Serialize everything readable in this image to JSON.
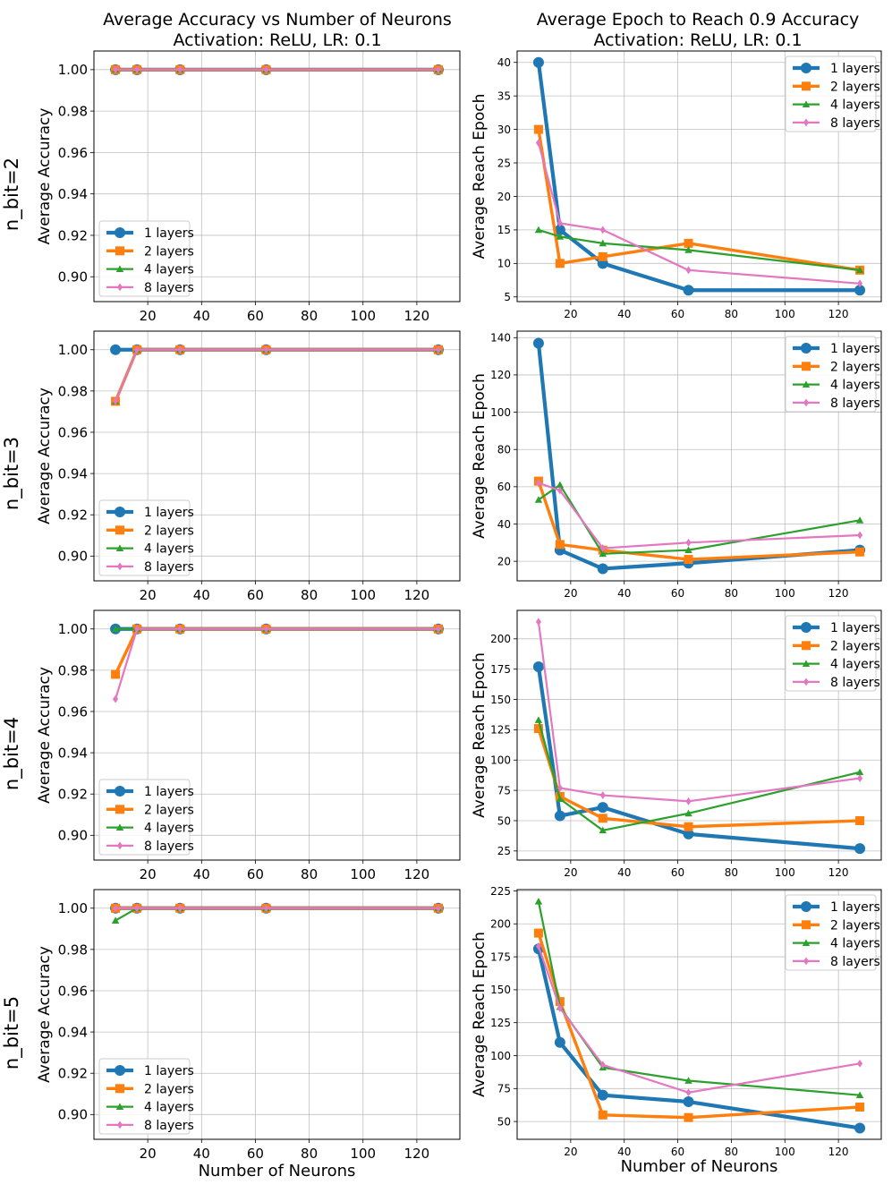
{
  "figure": {
    "col_titles": [
      {
        "line1": "Average Accuracy vs Number of Neurons",
        "line2": "Activation: ReLU, LR: 0.1"
      },
      {
        "line1": "Average Epoch to Reach 0.9 Accuracy",
        "line2": "Activation: ReLU, LR: 0.1"
      }
    ],
    "row_labels": [
      "n_bit=2",
      "n_bit=3",
      "n_bit=4",
      "n_bit=5"
    ],
    "shared_xlabel": "Number of Neurons"
  },
  "series_style": [
    {
      "name": "1 layers",
      "color": "#1f77b4",
      "marker": "circle"
    },
    {
      "name": "2 layers",
      "color": "#ff7f0e",
      "marker": "square"
    },
    {
      "name": "4 layers",
      "color": "#2ca02c",
      "marker": "triangle"
    },
    {
      "name": "8 layers",
      "color": "#e377c2",
      "marker": "diamond"
    }
  ],
  "chart_data": [
    {
      "id": "acc-nbit2",
      "type": "line",
      "title": "",
      "xlabel": "",
      "ylabel": "Average Accuracy",
      "x": [
        8,
        16,
        32,
        64,
        128
      ],
      "xlim": [
        0,
        136
      ],
      "ylim": [
        0.888,
        1.009
      ],
      "xticks": [
        20,
        40,
        60,
        80,
        100,
        120
      ],
      "yticks": [
        0.9,
        0.92,
        0.94,
        0.96,
        0.98,
        1.0
      ],
      "ytick_labels": [
        "0.90",
        "0.92",
        "0.94",
        "0.96",
        "0.98",
        "1.00"
      ],
      "legend": "lower-left",
      "series": [
        {
          "name": "1 layers",
          "values": [
            1.0,
            1.0,
            1.0,
            1.0,
            1.0
          ]
        },
        {
          "name": "2 layers",
          "values": [
            1.0,
            1.0,
            1.0,
            1.0,
            1.0
          ]
        },
        {
          "name": "4 layers",
          "values": [
            1.0,
            1.0,
            1.0,
            1.0,
            1.0
          ]
        },
        {
          "name": "8 layers",
          "values": [
            1.0,
            1.0,
            1.0,
            1.0,
            1.0
          ]
        }
      ]
    },
    {
      "id": "epoch-nbit2",
      "type": "line",
      "title": "",
      "xlabel": "",
      "ylabel": "Average Reach Epoch",
      "x": [
        8,
        16,
        32,
        64,
        128
      ],
      "xlim": [
        0,
        136
      ],
      "ylim": [
        4.3,
        41.7
      ],
      "xticks": [
        20,
        40,
        60,
        80,
        100,
        120
      ],
      "yticks": [
        5,
        10,
        15,
        20,
        25,
        30,
        35,
        40
      ],
      "ytick_labels": [
        "5",
        "10",
        "15",
        "20",
        "25",
        "30",
        "35",
        "40"
      ],
      "legend": "top-right",
      "series": [
        {
          "name": "1 layers",
          "values": [
            40,
            15,
            10,
            6,
            6
          ]
        },
        {
          "name": "2 layers",
          "values": [
            30,
            10,
            11,
            13,
            9
          ]
        },
        {
          "name": "4 layers",
          "values": [
            15,
            14,
            13,
            12,
            9
          ]
        },
        {
          "name": "8 layers",
          "values": [
            28,
            16,
            15,
            9,
            7
          ]
        }
      ]
    },
    {
      "id": "acc-nbit3",
      "type": "line",
      "title": "",
      "xlabel": "",
      "ylabel": "Average Accuracy",
      "x": [
        8,
        16,
        32,
        64,
        128
      ],
      "xlim": [
        0,
        136
      ],
      "ylim": [
        0.888,
        1.009
      ],
      "xticks": [
        20,
        40,
        60,
        80,
        100,
        120
      ],
      "yticks": [
        0.9,
        0.92,
        0.94,
        0.96,
        0.98,
        1.0
      ],
      "ytick_labels": [
        "0.90",
        "0.92",
        "0.94",
        "0.96",
        "0.98",
        "1.00"
      ],
      "legend": "lower-left",
      "series": [
        {
          "name": "1 layers",
          "values": [
            1.0,
            1.0,
            1.0,
            1.0,
            1.0
          ]
        },
        {
          "name": "2 layers",
          "values": [
            0.975,
            1.0,
            1.0,
            1.0,
            1.0
          ]
        },
        {
          "name": "4 layers",
          "values": [
            0.975,
            1.0,
            1.0,
            1.0,
            1.0
          ]
        },
        {
          "name": "8 layers",
          "values": [
            0.975,
            1.0,
            1.0,
            1.0,
            1.0
          ]
        }
      ]
    },
    {
      "id": "epoch-nbit3",
      "type": "line",
      "title": "",
      "xlabel": "",
      "ylabel": "Average Reach Epoch",
      "x": [
        8,
        16,
        32,
        64,
        128
      ],
      "xlim": [
        0,
        136
      ],
      "ylim": [
        9.5,
        143.5
      ],
      "xticks": [
        20,
        40,
        60,
        80,
        100,
        120
      ],
      "yticks": [
        20,
        40,
        60,
        80,
        100,
        120,
        140
      ],
      "ytick_labels": [
        "20",
        "40",
        "60",
        "80",
        "100",
        "120",
        "140"
      ],
      "legend": "top-right",
      "series": [
        {
          "name": "1 layers",
          "values": [
            137,
            26,
            16,
            19,
            26
          ]
        },
        {
          "name": "2 layers",
          "values": [
            63,
            29,
            26,
            21,
            25
          ]
        },
        {
          "name": "4 layers",
          "values": [
            53,
            61,
            24,
            26,
            42
          ]
        },
        {
          "name": "8 layers",
          "values": [
            62,
            58,
            27,
            30,
            34
          ]
        }
      ]
    },
    {
      "id": "acc-nbit4",
      "type": "line",
      "title": "",
      "xlabel": "",
      "ylabel": "Average Accuracy",
      "x": [
        8,
        16,
        32,
        64,
        128
      ],
      "xlim": [
        0,
        136
      ],
      "ylim": [
        0.888,
        1.009
      ],
      "xticks": [
        20,
        40,
        60,
        80,
        100,
        120
      ],
      "yticks": [
        0.9,
        0.92,
        0.94,
        0.96,
        0.98,
        1.0
      ],
      "ytick_labels": [
        "0.90",
        "0.92",
        "0.94",
        "0.96",
        "0.98",
        "1.00"
      ],
      "legend": "lower-left",
      "series": [
        {
          "name": "1 layers",
          "values": [
            1.0,
            1.0,
            1.0,
            1.0,
            1.0
          ]
        },
        {
          "name": "2 layers",
          "values": [
            0.978,
            1.0,
            1.0,
            1.0,
            1.0
          ]
        },
        {
          "name": "4 layers",
          "values": [
            1.0,
            1.0,
            1.0,
            1.0,
            1.0
          ]
        },
        {
          "name": "8 layers",
          "values": [
            0.966,
            1.0,
            1.0,
            1.0,
            1.0
          ]
        }
      ]
    },
    {
      "id": "epoch-nbit4",
      "type": "line",
      "title": "",
      "xlabel": "",
      "ylabel": "Average Reach Epoch",
      "x": [
        8,
        16,
        32,
        64,
        128
      ],
      "xlim": [
        0,
        136
      ],
      "ylim": [
        17.5,
        223.5
      ],
      "xticks": [
        20,
        40,
        60,
        80,
        100,
        120
      ],
      "yticks": [
        25,
        50,
        75,
        100,
        125,
        150,
        175,
        200
      ],
      "ytick_labels": [
        "25",
        "50",
        "75",
        "100",
        "125",
        "150",
        "175",
        "200"
      ],
      "legend": "top-right",
      "series": [
        {
          "name": "1 layers",
          "values": [
            177,
            54,
            61,
            39,
            27
          ]
        },
        {
          "name": "2 layers",
          "values": [
            126,
            70,
            52,
            45,
            50
          ]
        },
        {
          "name": "4 layers",
          "values": [
            133,
            68,
            42,
            56,
            90
          ]
        },
        {
          "name": "8 layers",
          "values": [
            214,
            77,
            71,
            66,
            85
          ]
        }
      ]
    },
    {
      "id": "acc-nbit5",
      "type": "line",
      "title": "",
      "xlabel": "Number of Neurons",
      "ylabel": "Average Accuracy",
      "x": [
        8,
        16,
        32,
        64,
        128
      ],
      "xlim": [
        0,
        136
      ],
      "ylim": [
        0.888,
        1.009
      ],
      "xticks": [
        20,
        40,
        60,
        80,
        100,
        120
      ],
      "yticks": [
        0.9,
        0.92,
        0.94,
        0.96,
        0.98,
        1.0
      ],
      "ytick_labels": [
        "0.90",
        "0.92",
        "0.94",
        "0.96",
        "0.98",
        "1.00"
      ],
      "legend": "lower-left",
      "series": [
        {
          "name": "1 layers",
          "values": [
            1.0,
            1.0,
            1.0,
            1.0,
            1.0
          ]
        },
        {
          "name": "2 layers",
          "values": [
            1.0,
            1.0,
            1.0,
            1.0,
            1.0
          ]
        },
        {
          "name": "4 layers",
          "values": [
            0.994,
            1.0,
            1.0,
            1.0,
            1.0
          ]
        },
        {
          "name": "8 layers",
          "values": [
            1.0,
            1.0,
            1.0,
            1.0,
            1.0
          ]
        }
      ]
    },
    {
      "id": "epoch-nbit5",
      "type": "line",
      "title": "",
      "xlabel": "Number of Neurons",
      "ylabel": "Average Reach Epoch",
      "x": [
        8,
        16,
        32,
        64,
        128
      ],
      "xlim": [
        0,
        136
      ],
      "ylim": [
        36.5,
        226
      ],
      "xticks": [
        20,
        40,
        60,
        80,
        100,
        120
      ],
      "yticks": [
        50,
        75,
        100,
        125,
        150,
        175,
        200,
        225
      ],
      "ytick_labels": [
        "50",
        "75",
        "100",
        "125",
        "150",
        "175",
        "200",
        "225"
      ],
      "legend": "top-right",
      "series": [
        {
          "name": "1 layers",
          "values": [
            181,
            110,
            70,
            65,
            45
          ]
        },
        {
          "name": "2 layers",
          "values": [
            193,
            141,
            55,
            53,
            61
          ]
        },
        {
          "name": "4 layers",
          "values": [
            217,
            137,
            91,
            81,
            70
          ]
        },
        {
          "name": "8 layers",
          "values": [
            183,
            136,
            93,
            72,
            94
          ]
        }
      ]
    }
  ]
}
